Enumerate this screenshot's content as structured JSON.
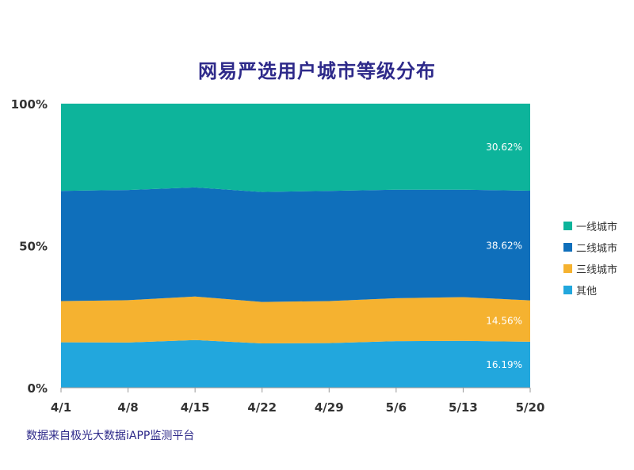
{
  "chart_data": {
    "type": "area",
    "stacking": "percent",
    "title": "网易严选用户城市等级分布",
    "x": [
      "4/1",
      "4/8",
      "4/15",
      "4/22",
      "4/29",
      "5/6",
      "5/13",
      "5/20"
    ],
    "y_ticks": [
      "0%",
      "50%",
      "100%"
    ],
    "ylim": [
      0,
      100
    ],
    "legend_position": "right",
    "series": [
      {
        "name": "其他",
        "color": "#22a7dd",
        "values": [
          16.0,
          15.9,
          16.8,
          15.6,
          15.7,
          16.4,
          16.5,
          16.19
        ],
        "end_label": "16.19%"
      },
      {
        "name": "三线城市",
        "color": "#f5b230",
        "values": [
          14.5,
          14.9,
          15.3,
          14.6,
          14.8,
          15.1,
          15.4,
          14.56
        ],
        "end_label": "14.56%"
      },
      {
        "name": "二线城市",
        "color": "#0f6fbb",
        "values": [
          38.8,
          38.8,
          38.4,
          38.7,
          38.8,
          38.2,
          37.8,
          38.62
        ],
        "end_label": "38.62%"
      },
      {
        "name": "一线城市",
        "color": "#0db49b",
        "values": [
          30.7,
          30.4,
          29.5,
          31.1,
          30.7,
          30.3,
          30.3,
          30.62
        ],
        "end_label": "30.62%"
      }
    ],
    "legend_order": [
      "一线城市",
      "二线城市",
      "三线城市",
      "其他"
    ],
    "source": "数据来自极光大数据iAPP监测平台"
  }
}
